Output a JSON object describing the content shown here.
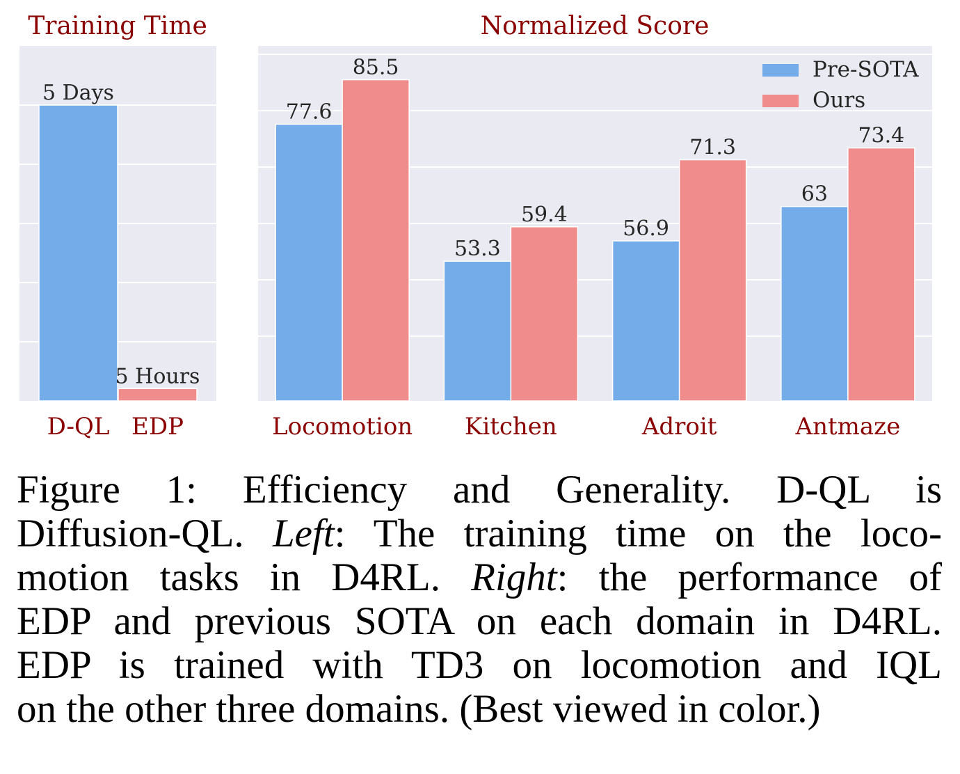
{
  "chart_data": [
    {
      "type": "bar",
      "title": "Training Time",
      "categories": [
        "D-QL",
        "EDP"
      ],
      "values": [
        5,
        0.2083
      ],
      "value_unit": "days",
      "data_labels": [
        "5 Days",
        "5 Hours"
      ],
      "ylim": [
        0,
        6
      ],
      "grid": true,
      "colors": [
        "#74acea",
        "#f08c8c"
      ]
    },
    {
      "type": "bar",
      "title": "Normalized Score",
      "categories": [
        "Locomotion",
        "Kitchen",
        "Adroit",
        "Antmaze"
      ],
      "series": [
        {
          "name": "Pre-SOTA",
          "color": "#74acea",
          "values": [
            77.6,
            53.3,
            56.9,
            63
          ],
          "labels": [
            "77.6",
            "53.3",
            "56.9",
            "63"
          ]
        },
        {
          "name": "Ours",
          "color": "#f08c8c",
          "values": [
            85.5,
            59.4,
            71.3,
            73.4
          ],
          "labels": [
            "85.5",
            "59.4",
            "71.3",
            "73.4"
          ]
        }
      ],
      "ylim": [
        28.5,
        91.5
      ],
      "grid": true,
      "legend_position": "top-right"
    }
  ],
  "caption": {
    "lines": [
      "Figure 1:  Efficiency and Generality.  D-QL is",
      "Diffusion-QL. <em>Left</em>: The training time on the loco-",
      "motion tasks in D4RL. <em>Right</em>: the performance of",
      "EDP and previous SOTA on each domain in D4RL.",
      "EDP is trained with TD3 on locomotion and IQL",
      "on the other three domains. (Best viewed in color.)"
    ]
  },
  "colors": {
    "panel_bg": "#eaeaf2",
    "grid": "#ffffff",
    "title_text": "#8b0000"
  }
}
